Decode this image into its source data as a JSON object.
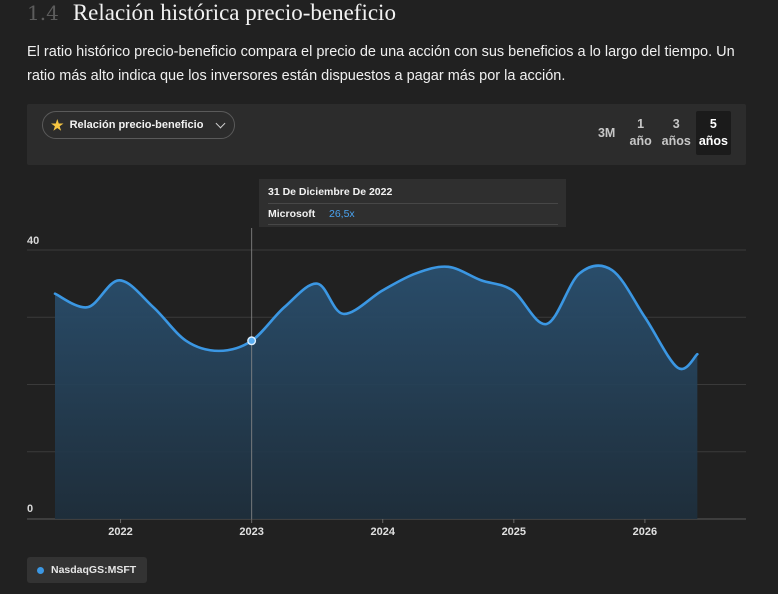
{
  "header": {
    "section_number": "1.4",
    "title": "Relación histórica precio-beneficio",
    "description": "El ratio histórico precio-beneficio compara el precio de una acción con sus beneficios a lo largo del tiempo. Un ratio más alto indica que los inversores están dispuestos a pagar más por la acción."
  },
  "toolbar": {
    "metric_label": "Relación precio-beneficio",
    "metric_icon": "star-icon",
    "ranges": [
      {
        "line1": "3M",
        "line2": "",
        "active": false
      },
      {
        "line1": "1",
        "line2": "año",
        "active": false
      },
      {
        "line1": "3",
        "line2": "años",
        "active": false
      },
      {
        "line1": "5",
        "line2": "años",
        "active": true
      }
    ]
  },
  "tooltip": {
    "date": "31 De Diciembre De 2022",
    "company": "Microsoft",
    "value": "26,5x"
  },
  "legend": {
    "label": "NasdaqGS:MSFT",
    "color": "#3b97e3"
  },
  "chart_data": {
    "type": "area",
    "xlabel": "",
    "ylabel": "",
    "ylim": [
      0,
      40
    ],
    "yticks": [
      0,
      40
    ],
    "xticks": [
      "2022",
      "2023",
      "2024",
      "2025",
      "2026"
    ],
    "xlim": [
      2021.5,
      2026.55
    ],
    "grid": true,
    "highlight": {
      "x": 2023.0,
      "y": 26.5
    },
    "series": [
      {
        "name": "",
        "color": "#3b97e3",
        "points": [
          [
            2021.5,
            33.5
          ],
          [
            2021.75,
            31.5
          ],
          [
            2021.99,
            35.5
          ],
          [
            2022.25,
            31.5
          ],
          [
            2022.5,
            26.5
          ],
          [
            2022.75,
            25.0
          ],
          [
            2023.0,
            26.5
          ],
          [
            2023.25,
            31.5
          ],
          [
            2023.5,
            35.0
          ],
          [
            2023.7,
            30.5
          ],
          [
            2024.0,
            34.0
          ],
          [
            2024.25,
            36.5
          ],
          [
            2024.5,
            37.5
          ],
          [
            2024.75,
            35.5
          ],
          [
            2024.99,
            34.0
          ],
          [
            2025.25,
            29.0
          ],
          [
            2025.5,
            36.5
          ],
          [
            2025.75,
            37.0
          ],
          [
            2026.0,
            30.0
          ],
          [
            2026.25,
            22.5
          ],
          [
            2026.4,
            24.5
          ]
        ]
      }
    ]
  }
}
